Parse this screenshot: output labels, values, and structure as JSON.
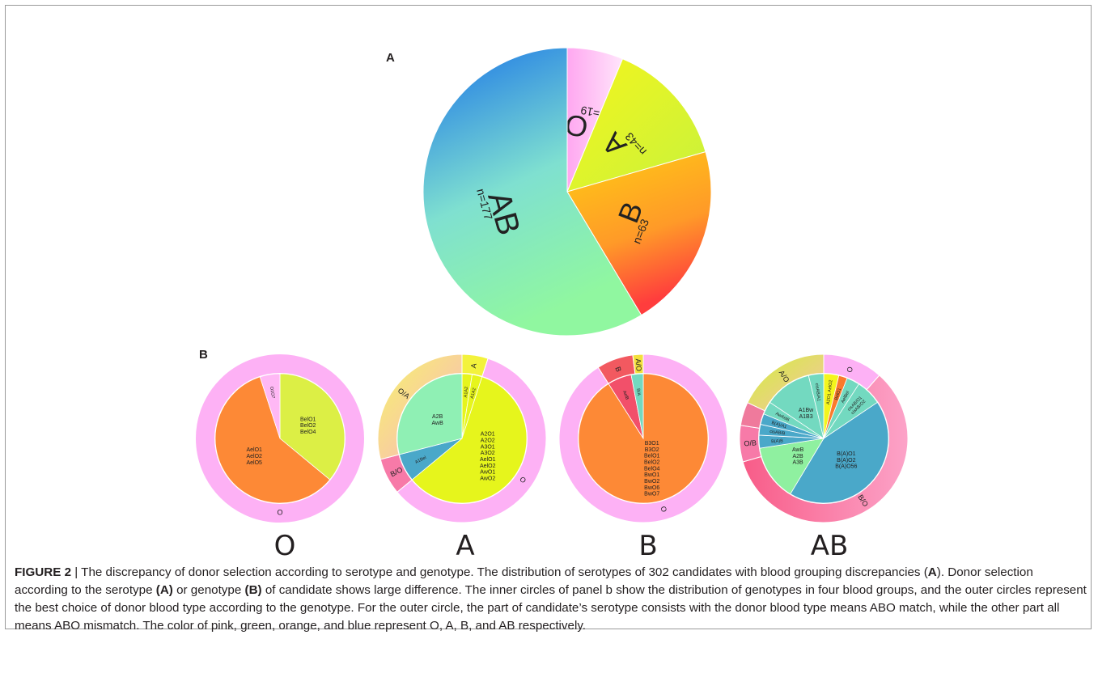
{
  "panel_a_letter": "A",
  "panel_b_letter": "B",
  "chart_data": [
    {
      "type": "pie",
      "panel": "A",
      "slices": [
        {
          "label": "O",
          "count_label": "n=19",
          "value": 19,
          "color": "#ffb8f5"
        },
        {
          "label": "A",
          "count_label": "n=43",
          "value": 43,
          "color": "#e6f51c"
        },
        {
          "label": "B",
          "count_label": "n=63",
          "value": 63,
          "color": "#ffab1a"
        },
        {
          "label": "AB",
          "count_label": "n=177",
          "value": 177,
          "color": "#73d9d2"
        }
      ]
    },
    {
      "type": "pie",
      "panel": "B",
      "title": "O",
      "inner": [
        {
          "label": "BelO1\nBelO2\nBelO4",
          "value": 0.36,
          "color": "#dcef45"
        },
        {
          "label": "AelO1\nAelO2\nAelO5",
          "value": 0.59,
          "color": "#fd8936"
        },
        {
          "label": "O1O7",
          "value": 0.05,
          "color": "#ffb8f5"
        }
      ],
      "outer": [
        {
          "label": "O",
          "value": 1,
          "color": "#fdb1f5"
        }
      ]
    },
    {
      "type": "pie",
      "panel": "B",
      "title": "A",
      "inner": [
        {
          "label": "A1A2",
          "value": 0.025,
          "color": "#e6f51c"
        },
        {
          "label": "A1A2",
          "value": 0.025,
          "color": "#e6f51c"
        },
        {
          "label": "A2O1\nA2O2\nA3O1\nA3O2\nAelO1\nAelO2\nAwO1\nAwO2",
          "value": 0.59,
          "color": "#e6f51c"
        },
        {
          "label": "A1Bel",
          "value": 0.07,
          "color": "#4aa8c9"
        },
        {
          "label": "A2B\nAwB",
          "value": 0.29,
          "color": "#8ff0b4"
        }
      ],
      "outer": [
        {
          "label": "A",
          "value": 0.05,
          "color": "#f3f23c"
        },
        {
          "label": "O",
          "value": 0.59,
          "color": "#fdb1f5"
        },
        {
          "label": "B/O",
          "value": 0.07,
          "color": "#f77aa8"
        },
        {
          "label": "O/A",
          "value": 0.29,
          "color": "#f9c6a6"
        }
      ]
    },
    {
      "type": "pie",
      "panel": "B",
      "title": "B",
      "inner": [
        {
          "label": "B3O1\nB3O2\nBelO1\nBelO2\nBelO4\nBwO1\nBwO2\nBwO6\nBwO7",
          "value": 0.91,
          "color": "#fd8936"
        },
        {
          "label": "AelB",
          "value": 0.06,
          "color": "#f2506a"
        },
        {
          "label": "B/A",
          "value": 0.03,
          "color": "#73d9c0"
        }
      ],
      "outer": [
        {
          "label": "O",
          "value": 0.91,
          "color": "#fdb1f5"
        },
        {
          "label": "B",
          "value": 0.07,
          "color": "#f25960"
        },
        {
          "label": "A/O",
          "value": 0.02,
          "color": "#f3e03c"
        }
      ]
    },
    {
      "type": "pie",
      "panel": "B",
      "title": "AB",
      "inner": [
        {
          "label": "A2O1 AelO2",
          "value": 0.035,
          "color": "#f4f51c"
        },
        {
          "label": "BelO1",
          "value": 0.02,
          "color": "#fb7a2c"
        },
        {
          "label": "AelBel",
          "value": 0.03,
          "color": "#73d9c0"
        },
        {
          "label": "cisAB/O1\ncisAB/O2",
          "value": 0.06,
          "color": "#73d9c0"
        },
        {
          "label": "B(A)O1\nB(A)O2\nB(A)O56",
          "value": 0.4,
          "color": "#4aa8c9"
        },
        {
          "label": "AwB\nA2B\nA3B",
          "value": 0.13,
          "color": "#8ff0a0"
        },
        {
          "label": "B(A)B",
          "value": 0.03,
          "color": "#4aa8c9"
        },
        {
          "label": "cisAB/B",
          "value": 0.025,
          "color": "#4aa8c9"
        },
        {
          "label": "B(A)/A1",
          "value": 0.025,
          "color": "#4aa8c9"
        },
        {
          "label": "AwAel6",
          "value": 0.03,
          "color": "#73d9c0"
        },
        {
          "label": "A1Bw\nA1B3",
          "value": 0.11,
          "color": "#73d9c0"
        },
        {
          "label": "cisAB/A1",
          "value": 0.035,
          "color": "#73d9c0"
        }
      ],
      "outer": [
        {
          "label": "O",
          "value": 0.115,
          "color": "#fdb1f5"
        },
        {
          "label": "B/O",
          "value": 0.59,
          "color": "#fa6fa0"
        },
        {
          "label": "O/B",
          "value": 0.07,
          "color": "#f77aa8"
        },
        {
          "label": "",
          "value": 0.045,
          "color": "#ef7a9c"
        },
        {
          "label": "A/O",
          "value": 0.18,
          "color": "#d8e85a"
        }
      ]
    }
  ],
  "caption": {
    "figure_label": "FIGURE 2",
    "separator": " | ",
    "text_1": "The discrepancy of donor selection according to serotype and genotype. The distribution of serotypes of 302 candidates with blood grouping discrepancies (",
    "ref_a1": "A",
    "text_2": "). Donor selection according to the serotype ",
    "ref_a2": "(A)",
    "text_3": " or genotype ",
    "ref_b": "(B)",
    "text_4": " of candidate shows large difference. The inner circles of panel b show the distribution of genotypes in four blood groups, and the outer circles represent the best choice of donor blood type according to the genotype. For the outer circle, the part of candidate’s serotype consists with the donor blood type means ABO match, while the other part all means ABO mismatch. The color of pink, green, orange, and blue represent O, A, B, and AB respectively."
  }
}
